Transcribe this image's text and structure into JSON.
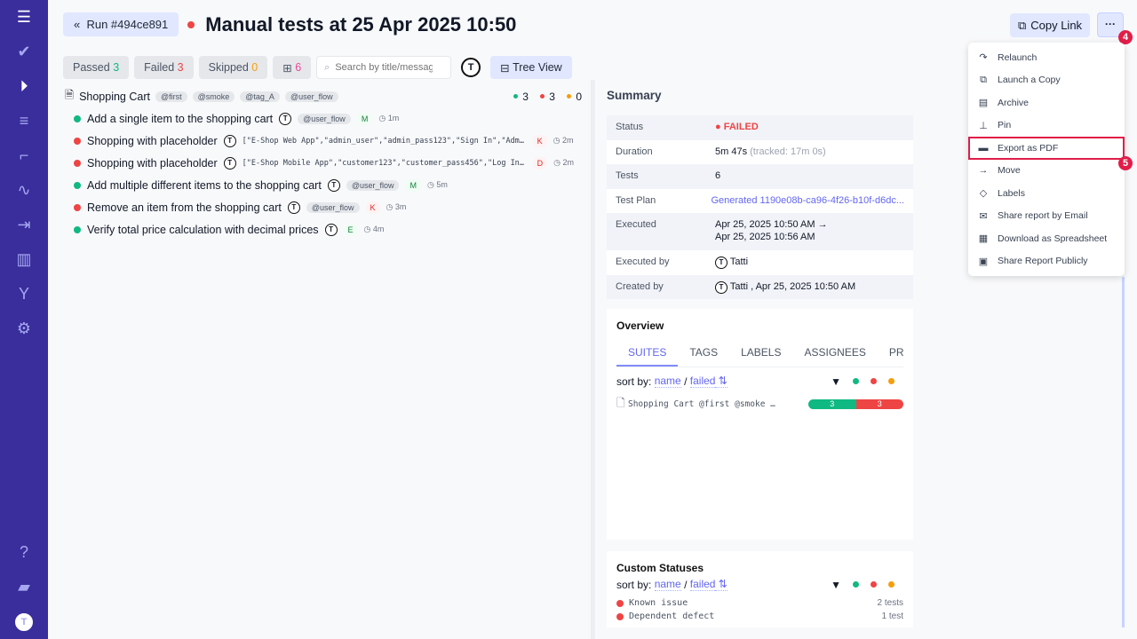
{
  "sidebar": {
    "items": [
      {
        "icon": "menu-icon"
      },
      {
        "icon": "check-icon"
      },
      {
        "icon": "play-circle-icon"
      },
      {
        "icon": "checklist-icon"
      },
      {
        "icon": "steps-icon"
      },
      {
        "icon": "pulse-icon"
      },
      {
        "icon": "import-icon"
      },
      {
        "icon": "chart-icon"
      },
      {
        "icon": "branch-icon"
      },
      {
        "icon": "gear-icon"
      }
    ],
    "bottom": [
      {
        "icon": "help-icon"
      },
      {
        "icon": "folder-icon"
      },
      {
        "icon": "avatar-icon"
      }
    ],
    "color": "#3a2d9c"
  },
  "header": {
    "run_label": "Run #494ce891",
    "title": "Manual tests at 25 Apr 2025 10:50",
    "copy_link": "Copy Link",
    "more": "···",
    "step4": "4"
  },
  "filters": {
    "passed_label": "Passed",
    "passed": "3",
    "failed_label": "Failed",
    "failed": "3",
    "skipped_label": "Skipped",
    "skipped": "0",
    "comments": "6",
    "search_placeholder": "Search by title/message",
    "tree_view": "Tree View"
  },
  "suite": {
    "name": "Shopping Cart",
    "tags": [
      "@first",
      "@smoke",
      "@tag_A",
      "@user_flow"
    ],
    "passed": "3",
    "failed": "3",
    "skipped": "0",
    "tests": [
      {
        "status": "passed",
        "title": "Add a single item to the shopping cart",
        "extra": "@user_flow",
        "letter": "M",
        "time": "1m"
      },
      {
        "status": "failed",
        "title": "Shopping with placeholder",
        "params": "[\"E-Shop Web App\",\"admin_user\",\"admin_pass123\",\"Sign In\",\"Admin Dashboard\"]",
        "letter": "K",
        "time": "2m"
      },
      {
        "status": "failed",
        "title": "Shopping with placeholder",
        "params": "[\"E-Shop Mobile App\",\"customer123\",\"customer_pass456\",\"Log In\",\"Home\"]",
        "letter": "D",
        "time": "2m"
      },
      {
        "status": "passed",
        "title": "Add multiple different items to the shopping cart",
        "extra": "@user_flow",
        "letter": "M",
        "time": "5m"
      },
      {
        "status": "failed",
        "title": "Remove an item from the shopping cart",
        "extra": "@user_flow",
        "letter": "K",
        "time": "3m"
      },
      {
        "status": "passed",
        "title": "Verify total price calculation with decimal prices",
        "letter": "E",
        "time": "4m"
      }
    ]
  },
  "summary": {
    "title": "Summary",
    "rows": [
      {
        "label": "Status",
        "value": "FAILED"
      },
      {
        "label": "Duration",
        "value": "5m 47s",
        "extra": "(tracked: 17m 0s)"
      },
      {
        "label": "Tests",
        "value": "6"
      },
      {
        "label": "Test Plan",
        "value": "Generated 1190e08b-ca96-4f26-b10f-d6dc..."
      },
      {
        "label": "Executed",
        "value": "Apr 25, 2025 10:50 AM →",
        "value2": "Apr 25, 2025 10:56 AM"
      },
      {
        "label": "Executed by",
        "value": "Tatti"
      },
      {
        "label": "Created by",
        "value": "Tatti , Apr 25, 2025 10:50 AM"
      }
    ]
  },
  "overview": {
    "title": "Overview",
    "tabs": [
      "SUITES",
      "TAGS",
      "LABELS",
      "ASSIGNEES",
      "PRIORITY"
    ],
    "sort_by": "sort by:",
    "sort_name": "name",
    "sort_sep": "/",
    "sort_failed": "failed",
    "suite_row": "Shopping Cart @first @smoke …",
    "bar_passed": "3",
    "bar_failed": "3"
  },
  "custom": {
    "title": "Custom Statuses",
    "rows": [
      {
        "name": "Known issue",
        "count": "2 tests"
      },
      {
        "name": "Dependent defect",
        "count": "1 test"
      }
    ]
  },
  "menu": {
    "items": [
      {
        "icon": "relaunch-icon",
        "label": "Relaunch"
      },
      {
        "icon": "copy-icon",
        "label": "Launch a Copy"
      },
      {
        "icon": "archive-icon",
        "label": "Archive"
      },
      {
        "icon": "pin-icon",
        "label": "Pin"
      },
      {
        "icon": "pdf-icon",
        "label": "Export as PDF"
      },
      {
        "icon": "arrow-right-icon",
        "label": "Move"
      },
      {
        "icon": "tag-icon",
        "label": "Labels"
      },
      {
        "icon": "mail-icon",
        "label": "Share report by Email"
      },
      {
        "icon": "spreadsheet-icon",
        "label": "Download as Spreadsheet"
      },
      {
        "icon": "share-icon",
        "label": "Share Report Publicly"
      }
    ],
    "step5": "5"
  },
  "colors": {
    "passed": "#10b981",
    "failed": "#ef4444",
    "skipped": "#f59e0b",
    "accent": "#6366f1",
    "highlight": "#e11d48"
  }
}
